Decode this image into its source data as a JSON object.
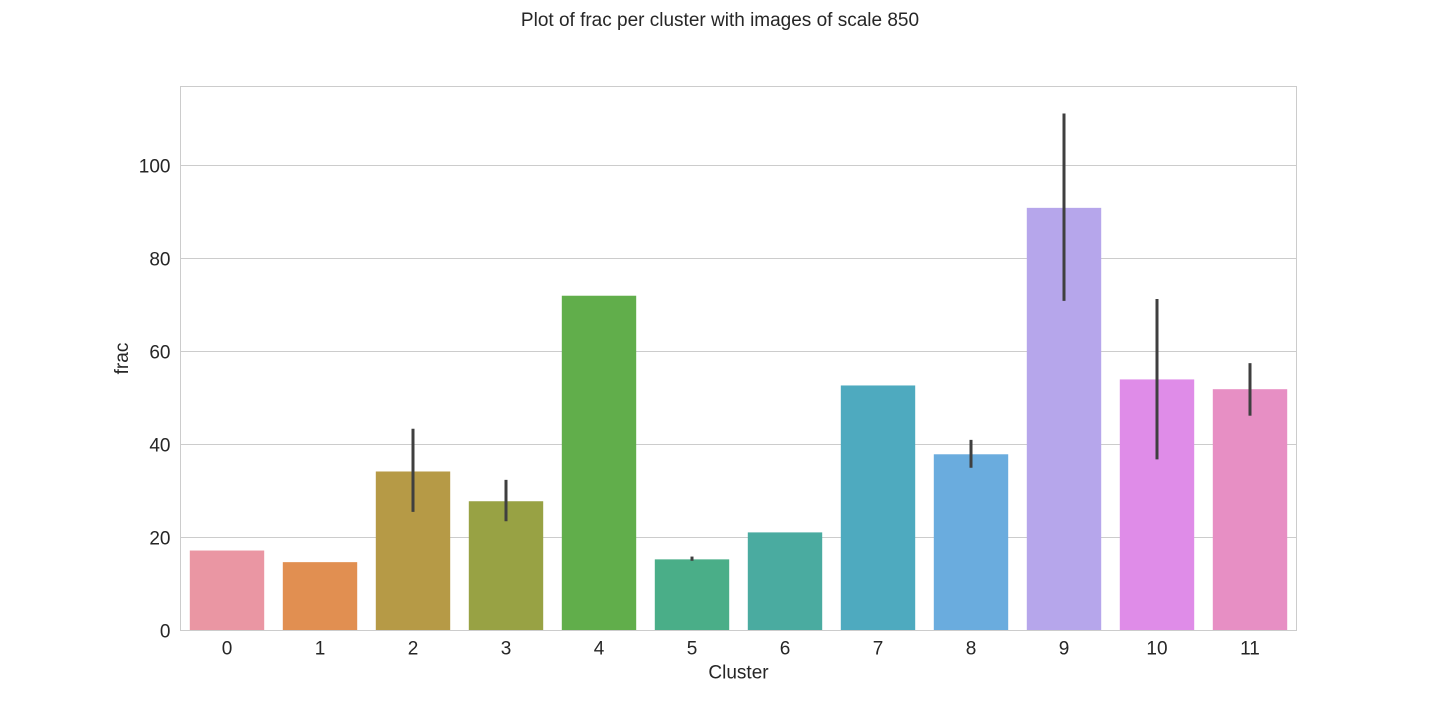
{
  "chart_data": {
    "type": "bar",
    "title": "Plot of frac per cluster with images of scale 850",
    "xlabel": "Cluster",
    "ylabel": "frac",
    "categories": [
      "0",
      "1",
      "2",
      "3",
      "4",
      "5",
      "6",
      "7",
      "8",
      "9",
      "10",
      "11"
    ],
    "values": [
      17.2,
      14.7,
      34.2,
      27.8,
      72.0,
      15.3,
      21.1,
      52.7,
      37.9,
      90.9,
      54.0,
      51.9
    ],
    "error_bars": [
      null,
      null,
      [
        25.5,
        43.4
      ],
      [
        23.5,
        32.4
      ],
      null,
      [
        15.0,
        15.9
      ],
      null,
      null,
      [
        35.0,
        41.0
      ],
      [
        70.9,
        111.2
      ],
      [
        36.8,
        71.3
      ],
      [
        46.2,
        57.5
      ]
    ],
    "colors": [
      "#ea96a3",
      "#e18f51",
      "#b69a46",
      "#98a244",
      "#61ae4b",
      "#4aae88",
      "#4aaba0",
      "#4eaabf",
      "#6aacde",
      "#b6a6eb",
      "#df8ce8",
      "#e78fc4"
    ],
    "ylim": [
      0,
      117
    ],
    "yticks": [
      0,
      20,
      40,
      60,
      80,
      100
    ],
    "grid": "horizontal",
    "style": {
      "grid_color": "#cccccc",
      "frame_color": "#cccccc",
      "error_color": "#3f3f3f",
      "text_color": "#262626"
    }
  }
}
